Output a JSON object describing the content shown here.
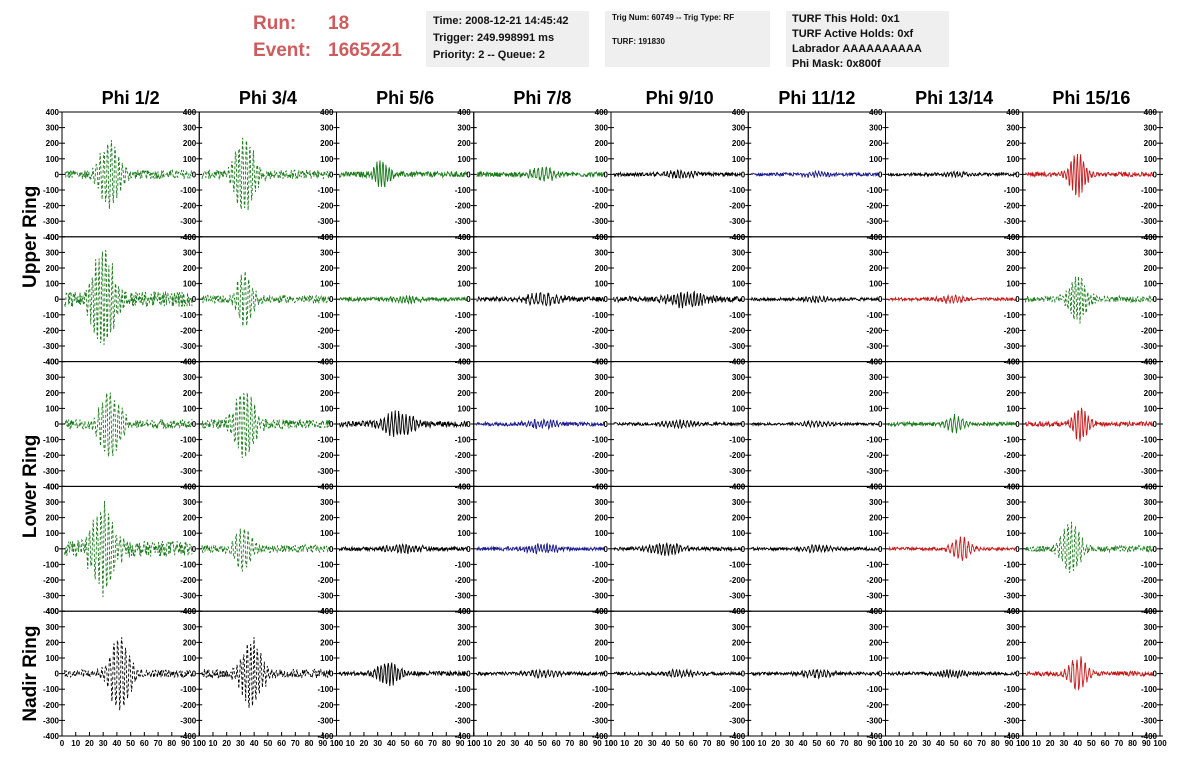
{
  "header": {
    "run_label": "Run:",
    "run_value": "18",
    "event_label": "Event:",
    "event_value": "1665221"
  },
  "info_box_1": {
    "time": "Time: 2008-12-21 14:45:42",
    "trigger": "Trigger: 249.998991 ms",
    "priority": "Priority: 2 -- Queue: 2"
  },
  "info_box_2": {
    "trig": "Trig Num: 60749 -- Trig Type: RF",
    "turf": "TURF: 191830"
  },
  "info_box_3": {
    "hold": "TURF This Hold: 0x1",
    "active": "TURF Active Holds: 0xf",
    "labrador": "Labrador AAAAAAAAAA",
    "mask": "Phi Mask: 0x800f"
  },
  "colors": {
    "header_red": "#cf5c5c",
    "green": "#1a7a1a",
    "black": "#000000",
    "blue": "#1a1a8c",
    "red": "#c41a1a"
  },
  "chart_data": {
    "type": "line",
    "columns": [
      "Phi 1/2",
      "Phi 3/4",
      "Phi 5/6",
      "Phi 7/8",
      "Phi 9/10",
      "Phi 11/12",
      "Phi 13/14",
      "Phi 15/16"
    ],
    "row_labels": [
      "Upper Ring",
      "Lower Ring",
      "Nadir Ring"
    ],
    "xlim": [
      0,
      100
    ],
    "ylim": [
      -400,
      400
    ],
    "x_ticks": [
      0,
      10,
      20,
      30,
      40,
      50,
      60,
      70,
      80,
      90,
      100
    ],
    "y_ticks": [
      -400,
      -300,
      -200,
      -100,
      0,
      100,
      200,
      300,
      400
    ],
    "panels": [
      {
        "row": 1,
        "col": 1,
        "color": "green",
        "dash": true,
        "center": 35,
        "width": 9,
        "amp": 210,
        "noise": 30
      },
      {
        "row": 1,
        "col": 2,
        "color": "green",
        "dash": true,
        "center": 33,
        "width": 9,
        "amp": 230,
        "noise": 30
      },
      {
        "row": 1,
        "col": 3,
        "color": "green",
        "dash": false,
        "center": 33,
        "width": 6,
        "amp": 95,
        "noise": 18
      },
      {
        "row": 1,
        "col": 4,
        "color": "green",
        "dash": false,
        "center": 50,
        "width": 10,
        "amp": 45,
        "noise": 15
      },
      {
        "row": 1,
        "col": 5,
        "color": "black",
        "dash": false,
        "center": 50,
        "width": 12,
        "amp": 20,
        "noise": 12
      },
      {
        "row": 1,
        "col": 6,
        "color": "blue",
        "dash": false,
        "center": 50,
        "width": 12,
        "amp": 15,
        "noise": 10
      },
      {
        "row": 1,
        "col": 7,
        "color": "black",
        "dash": false,
        "center": 50,
        "width": 12,
        "amp": 15,
        "noise": 10
      },
      {
        "row": 1,
        "col": 8,
        "color": "red",
        "dash": false,
        "center": 40,
        "width": 7,
        "amp": 135,
        "noise": 15
      },
      {
        "row": 2,
        "col": 1,
        "color": "green",
        "dash": true,
        "center": 30,
        "width": 10,
        "amp": 300,
        "noise": 50
      },
      {
        "row": 2,
        "col": 2,
        "color": "green",
        "dash": true,
        "center": 33,
        "width": 7,
        "amp": 180,
        "noise": 25
      },
      {
        "row": 2,
        "col": 3,
        "color": "green",
        "dash": false,
        "center": 50,
        "width": 12,
        "amp": 20,
        "noise": 12
      },
      {
        "row": 2,
        "col": 4,
        "color": "black",
        "dash": false,
        "center": 50,
        "width": 14,
        "amp": 35,
        "noise": 15
      },
      {
        "row": 2,
        "col": 5,
        "color": "black",
        "dash": false,
        "center": 55,
        "width": 15,
        "amp": 45,
        "noise": 18
      },
      {
        "row": 2,
        "col": 6,
        "color": "black",
        "dash": false,
        "center": 50,
        "width": 12,
        "amp": 15,
        "noise": 10
      },
      {
        "row": 2,
        "col": 7,
        "color": "red",
        "dash": false,
        "center": 50,
        "width": 12,
        "amp": 22,
        "noise": 10
      },
      {
        "row": 2,
        "col": 8,
        "color": "green",
        "dash": true,
        "center": 40,
        "width": 8,
        "amp": 150,
        "noise": 20
      },
      {
        "row": 3,
        "col": 1,
        "color": "green",
        "dash": true,
        "center": 35,
        "width": 9,
        "amp": 210,
        "noise": 30
      },
      {
        "row": 3,
        "col": 2,
        "color": "green",
        "dash": true,
        "center": 33,
        "width": 9,
        "amp": 230,
        "noise": 30
      },
      {
        "row": 3,
        "col": 3,
        "color": "black",
        "dash": false,
        "center": 45,
        "width": 14,
        "amp": 75,
        "noise": 18
      },
      {
        "row": 3,
        "col": 4,
        "color": "blue",
        "dash": false,
        "center": 50,
        "width": 14,
        "amp": 25,
        "noise": 12
      },
      {
        "row": 3,
        "col": 5,
        "color": "black",
        "dash": false,
        "center": 50,
        "width": 14,
        "amp": 20,
        "noise": 10
      },
      {
        "row": 3,
        "col": 6,
        "color": "black",
        "dash": false,
        "center": 50,
        "width": 14,
        "amp": 15,
        "noise": 8
      },
      {
        "row": 3,
        "col": 7,
        "color": "green",
        "dash": false,
        "center": 50,
        "width": 8,
        "amp": 55,
        "noise": 12
      },
      {
        "row": 3,
        "col": 8,
        "color": "red",
        "dash": false,
        "center": 42,
        "width": 7,
        "amp": 100,
        "noise": 15
      },
      {
        "row": 4,
        "col": 1,
        "color": "green",
        "dash": true,
        "center": 30,
        "width": 10,
        "amp": 280,
        "noise": 50
      },
      {
        "row": 4,
        "col": 2,
        "color": "green",
        "dash": true,
        "center": 32,
        "width": 7,
        "amp": 150,
        "noise": 25
      },
      {
        "row": 4,
        "col": 3,
        "color": "black",
        "dash": false,
        "center": 50,
        "width": 14,
        "amp": 25,
        "noise": 12
      },
      {
        "row": 4,
        "col": 4,
        "color": "blue",
        "dash": false,
        "center": 50,
        "width": 14,
        "amp": 25,
        "noise": 12
      },
      {
        "row": 4,
        "col": 5,
        "color": "black",
        "dash": false,
        "center": 40,
        "width": 14,
        "amp": 35,
        "noise": 12
      },
      {
        "row": 4,
        "col": 6,
        "color": "black",
        "dash": false,
        "center": 50,
        "width": 14,
        "amp": 20,
        "noise": 10
      },
      {
        "row": 4,
        "col": 7,
        "color": "red",
        "dash": false,
        "center": 55,
        "width": 8,
        "amp": 75,
        "noise": 10
      },
      {
        "row": 4,
        "col": 8,
        "color": "green",
        "dash": true,
        "center": 35,
        "width": 8,
        "amp": 170,
        "noise": 20
      },
      {
        "row": 5,
        "col": 1,
        "color": "black",
        "dash": true,
        "center": 42,
        "width": 9,
        "amp": 230,
        "noise": 25
      },
      {
        "row": 5,
        "col": 2,
        "color": "black",
        "dash": true,
        "center": 38,
        "width": 9,
        "amp": 220,
        "noise": 30
      },
      {
        "row": 5,
        "col": 3,
        "color": "black",
        "dash": false,
        "center": 38,
        "width": 10,
        "amp": 70,
        "noise": 15
      },
      {
        "row": 5,
        "col": 4,
        "color": "black",
        "dash": false,
        "center": 50,
        "width": 14,
        "amp": 25,
        "noise": 10
      },
      {
        "row": 5,
        "col": 5,
        "color": "black",
        "dash": false,
        "center": 50,
        "width": 14,
        "amp": 20,
        "noise": 10
      },
      {
        "row": 5,
        "col": 6,
        "color": "black",
        "dash": false,
        "center": 50,
        "width": 14,
        "amp": 22,
        "noise": 10
      },
      {
        "row": 5,
        "col": 7,
        "color": "black",
        "dash": false,
        "center": 50,
        "width": 14,
        "amp": 22,
        "noise": 10
      },
      {
        "row": 5,
        "col": 8,
        "color": "red",
        "dash": false,
        "center": 40,
        "width": 7,
        "amp": 110,
        "noise": 15
      }
    ]
  }
}
